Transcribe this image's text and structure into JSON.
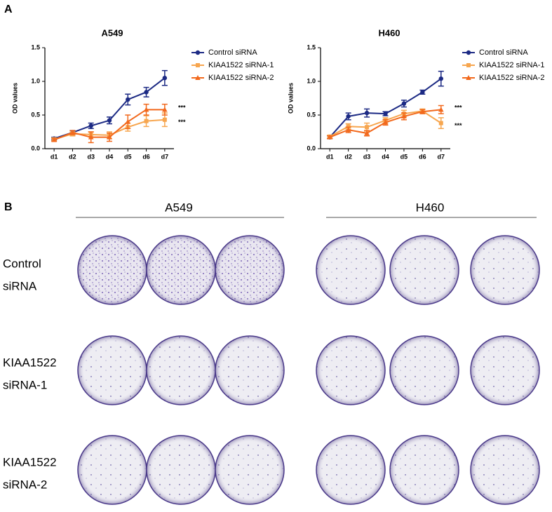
{
  "panels": {
    "a": "A",
    "b": "B"
  },
  "chart_data": [
    {
      "type": "line",
      "title": "A549",
      "y_label": "OD values",
      "categories": [
        "d1",
        "d2",
        "d3",
        "d4",
        "d5",
        "d6",
        "d7"
      ],
      "ylim": [
        0,
        1.5
      ],
      "yticks": [
        {
          "value": 0,
          "label": "0.0"
        },
        0.5,
        {
          "value": 1,
          "label": "1.0"
        },
        1.5
      ],
      "series": [
        {
          "name": "Control siRNA",
          "color": "#1c2a84",
          "marker": "circle",
          "values": [
            0.15,
            0.24,
            0.34,
            0.42,
            0.73,
            0.84,
            1.05
          ],
          "errors": [
            0.02,
            0.03,
            0.04,
            0.05,
            0.08,
            0.07,
            0.11
          ]
        },
        {
          "name": "KIAA1522 siRNA-1",
          "color": "#f7a64f",
          "marker": "square",
          "values": [
            0.14,
            0.22,
            0.21,
            0.2,
            0.32,
            0.41,
            0.43
          ],
          "errors": [
            0.02,
            0.03,
            0.04,
            0.05,
            0.06,
            0.08,
            0.1
          ]
        },
        {
          "name": "KIAA1522 siRNA-2",
          "color": "#f2691d",
          "marker": "triangle",
          "values": [
            0.13,
            0.24,
            0.17,
            0.17,
            0.4,
            0.58,
            0.58
          ],
          "errors": [
            0.02,
            0.03,
            0.08,
            0.06,
            0.1,
            0.08,
            0.08
          ]
        }
      ],
      "annotations": [
        "***",
        "***"
      ]
    },
    {
      "type": "line",
      "title": "H460",
      "y_label": "OD values",
      "categories": [
        "d1",
        "d2",
        "d3",
        "d4",
        "d5",
        "d6",
        "d7"
      ],
      "ylim": [
        0,
        1.5
      ],
      "yticks": [
        {
          "value": 0,
          "label": "0.0"
        },
        0.5,
        {
          "value": 1,
          "label": "1.0"
        },
        1.5
      ],
      "series": [
        {
          "name": "Control siRNA",
          "color": "#1c2a84",
          "marker": "circle",
          "values": [
            0.17,
            0.48,
            0.53,
            0.52,
            0.67,
            0.84,
            1.04
          ],
          "errors": [
            0.02,
            0.05,
            0.06,
            0.03,
            0.05,
            0.03,
            0.11
          ]
        },
        {
          "name": "KIAA1522 siRNA-1",
          "color": "#f7a64f",
          "marker": "square",
          "values": [
            0.18,
            0.33,
            0.32,
            0.42,
            0.52,
            0.56,
            0.38
          ],
          "errors": [
            0.02,
            0.04,
            0.06,
            0.04,
            0.05,
            0.03,
            0.08
          ]
        },
        {
          "name": "KIAA1522 siRNA-2",
          "color": "#f2691d",
          "marker": "triangle",
          "values": [
            0.17,
            0.28,
            0.23,
            0.39,
            0.48,
            0.55,
            0.58
          ],
          "errors": [
            0.02,
            0.04,
            0.04,
            0.04,
            0.05,
            0.03,
            0.06
          ]
        }
      ],
      "annotations": [
        "***",
        "***"
      ]
    }
  ],
  "plates": {
    "columns": [
      "A549",
      "H460"
    ],
    "rows": [
      [
        "Control",
        "siRNA"
      ],
      [
        "KIAA1522",
        "siRNA-1"
      ],
      [
        "KIAA1522",
        "siRNA-2"
      ]
    ]
  }
}
